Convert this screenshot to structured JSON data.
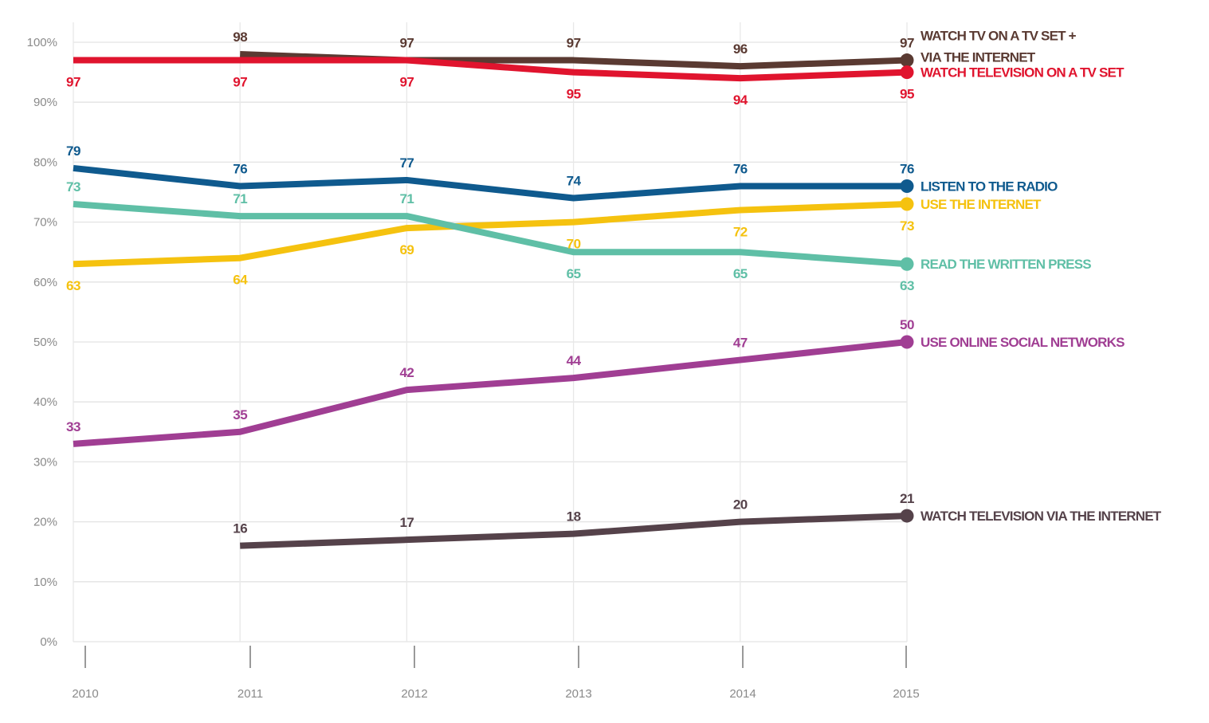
{
  "chart_data": {
    "type": "line",
    "x": [
      "2010",
      "2011",
      "2012",
      "2013",
      "2014",
      "2015"
    ],
    "ylim": [
      0,
      100
    ],
    "y_ticks": [
      "0%",
      "10%",
      "20%",
      "30%",
      "40%",
      "50%",
      "60%",
      "70%",
      "80%",
      "90%",
      "100%"
    ],
    "grid": true,
    "legend": "right (direct labels)",
    "series": [
      {
        "key": "tv-plus-internet",
        "label_lines": [
          "WATCH TV ON A TV SET +",
          "VIA THE INTERNET"
        ],
        "color": "#5a3a32",
        "values": [
          null,
          98,
          97,
          97,
          96,
          97
        ],
        "label_placement": [
          "",
          "above",
          "above",
          "above",
          "above",
          "above"
        ]
      },
      {
        "key": "tv-set",
        "label_lines": [
          "WATCH TELEVISION ON A TV SET"
        ],
        "color": "#e0142e",
        "values": [
          97,
          97,
          97,
          95,
          94,
          95
        ],
        "label_placement": [
          "below",
          "below",
          "below",
          "below",
          "below",
          "below"
        ]
      },
      {
        "key": "radio",
        "label_lines": [
          "LISTEN TO THE RADIO"
        ],
        "color": "#0f5a8e",
        "values": [
          79,
          76,
          77,
          74,
          76,
          76
        ],
        "label_placement": [
          "above",
          "above",
          "above",
          "above",
          "above",
          "above"
        ]
      },
      {
        "key": "internet",
        "label_lines": [
          "USE THE INTERNET"
        ],
        "color": "#f5c20f",
        "values": [
          63,
          64,
          69,
          70,
          72,
          73
        ],
        "label_placement": [
          "below",
          "below",
          "below",
          "below",
          "below",
          "below"
        ]
      },
      {
        "key": "press",
        "label_lines": [
          "READ THE WRITTEN PRESS"
        ],
        "color": "#5fbfa6",
        "values": [
          73,
          71,
          71,
          65,
          65,
          63
        ],
        "label_placement": [
          "above",
          "above",
          "above",
          "below",
          "below",
          "below"
        ]
      },
      {
        "key": "social",
        "label_lines": [
          "USE ONLINE SOCIAL NETWORKS"
        ],
        "color": "#a03e93",
        "values": [
          33,
          35,
          42,
          44,
          47,
          50
        ],
        "label_placement": [
          "above",
          "above",
          "above",
          "above",
          "above",
          "above"
        ]
      },
      {
        "key": "tv-internet",
        "label_lines": [
          "WATCH TELEVISION VIA THE INTERNET"
        ],
        "color": "#55424a",
        "values": [
          null,
          16,
          17,
          18,
          20,
          21
        ],
        "label_placement": [
          "",
          "above",
          "above",
          "above",
          "above",
          "above"
        ]
      }
    ]
  }
}
